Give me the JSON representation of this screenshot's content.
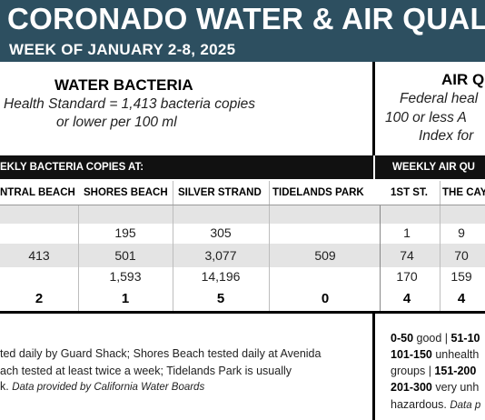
{
  "header": {
    "title": "CORONADO WATER & AIR QUALITY R",
    "week": "WEEK OF JANUARY 2-8, 2025"
  },
  "water": {
    "title": "WATER BACTERIA",
    "standard_line1": "Health Standard  = 1,413 bacteria copies",
    "standard_line2": "or lower per 100 ml",
    "bar_label": "EKLY BACTERIA COPIES AT:",
    "columns": [
      "NTRAL BEACH",
      "SHORES BEACH",
      "SILVER STRAND",
      "TIDELANDS PARK"
    ],
    "rows": [
      [
        "",
        "",
        "",
        ""
      ],
      [
        "",
        "195",
        "305",
        ""
      ],
      [
        "413",
        "501",
        "3,077",
        "509"
      ],
      [
        "",
        "1,593",
        "14,196",
        ""
      ]
    ],
    "totals": [
      "2",
      "1",
      "5",
      "0"
    ],
    "footer_line1": "ted daily by Guard Shack; Shores Beach tested daily at Avenida",
    "footer_line2": "ach tested at least twice a week; Tidelands Park is usually",
    "footer_line3_a": "k. ",
    "footer_line3_b": "Data provided by California Water Boards"
  },
  "air": {
    "title": "AIR Q",
    "standard_line1": "Federal heal",
    "standard_line2": "100 or less A",
    "standard_line3": "Index for",
    "bar_label": "WEEKLY AIR QU",
    "columns": [
      "1ST ST.",
      "THE CAY"
    ],
    "rows": [
      [
        "",
        ""
      ],
      [
        "1",
        "9"
      ],
      [
        "74",
        "70"
      ],
      [
        "170",
        "159"
      ]
    ],
    "totals": [
      "4",
      "4"
    ],
    "legend1_a": "0-50",
    "legend1_b": " good | ",
    "legend1_c": "51-10",
    "legend2_a": "101-150",
    "legend2_b": " unhealth",
    "legend3_a": "groups | ",
    "legend3_b": "151-200",
    "legend4_a": "201-300",
    "legend4_b": " very unh",
    "legend5_a": "hazardous. ",
    "legend5_b": "Data p"
  }
}
